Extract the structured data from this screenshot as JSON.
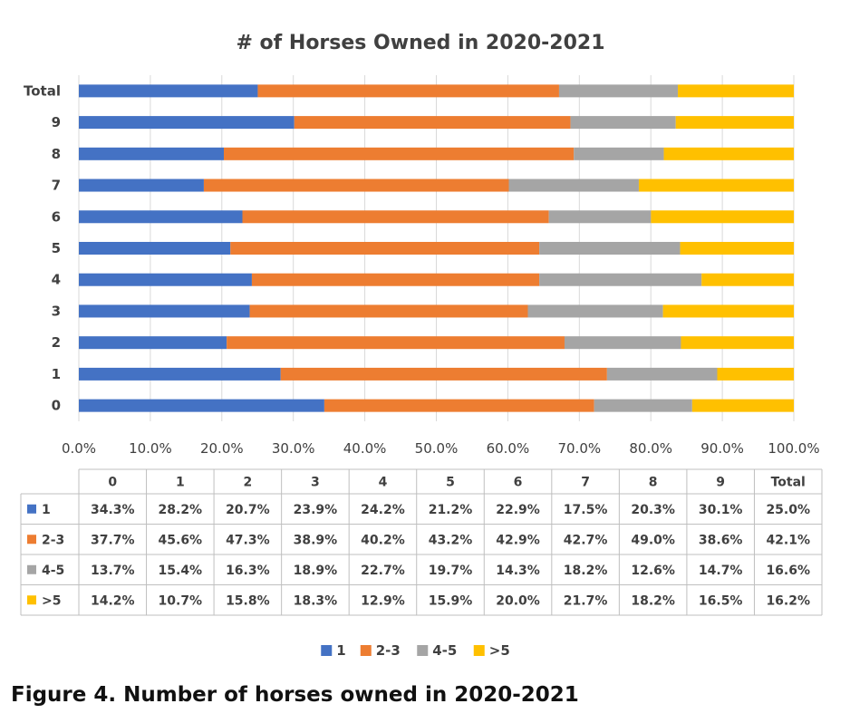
{
  "figure_caption": "Figure 4. Number of horses owned in 2020-2021",
  "chart_data": {
    "type": "bar",
    "orientation": "horizontal",
    "stacked": "100%",
    "title": "# of Horses Owned in 2020-2021",
    "categories": [
      "0",
      "1",
      "2",
      "3",
      "4",
      "5",
      "6",
      "7",
      "8",
      "9",
      "Total"
    ],
    "series": [
      {
        "name": "1",
        "color": "#4472c4",
        "values": [
          34.3,
          28.2,
          20.7,
          23.9,
          24.2,
          21.2,
          22.9,
          17.5,
          20.3,
          30.1,
          25.0
        ]
      },
      {
        "name": "2-3",
        "color": "#ed7d31",
        "values": [
          37.7,
          45.6,
          47.3,
          38.9,
          40.2,
          43.2,
          42.9,
          42.7,
          49.0,
          38.6,
          42.1
        ]
      },
      {
        "name": "4-5",
        "color": "#a5a5a5",
        "values": [
          13.7,
          15.4,
          16.3,
          18.9,
          22.7,
          19.7,
          14.3,
          18.2,
          12.6,
          14.7,
          16.6
        ]
      },
      {
        "name": ">5",
        "color": "#ffc000",
        "values": [
          14.2,
          10.7,
          15.8,
          18.3,
          12.9,
          15.9,
          20.0,
          21.7,
          18.2,
          16.5,
          16.2
        ]
      }
    ],
    "xlim": [
      0,
      100
    ],
    "x_ticks": [
      "0.0%",
      "10.0%",
      "20.0%",
      "30.0%",
      "40.0%",
      "50.0%",
      "60.0%",
      "70.0%",
      "80.0%",
      "90.0%",
      "100.0%"
    ],
    "grid": "vertical",
    "legend": "bottom",
    "data_table": {
      "columns": [
        "0",
        "1",
        "2",
        "3",
        "4",
        "5",
        "6",
        "7",
        "8",
        "9",
        "Total"
      ],
      "rows": [
        {
          "label": "1",
          "values": [
            "34.3%",
            "28.2%",
            "20.7%",
            "23.9%",
            "24.2%",
            "21.2%",
            "22.9%",
            "17.5%",
            "20.3%",
            "30.1%",
            "25.0%"
          ]
        },
        {
          "label": "2-3",
          "values": [
            "37.7%",
            "45.6%",
            "47.3%",
            "38.9%",
            "40.2%",
            "43.2%",
            "42.9%",
            "42.7%",
            "49.0%",
            "38.6%",
            "42.1%"
          ]
        },
        {
          "label": "4-5",
          "values": [
            "13.7%",
            "15.4%",
            "16.3%",
            "18.9%",
            "22.7%",
            "19.7%",
            "14.3%",
            "18.2%",
            "12.6%",
            "14.7%",
            "16.6%"
          ]
        },
        {
          "label": ">5",
          "values": [
            "14.2%",
            "10.7%",
            "15.8%",
            "18.3%",
            "12.9%",
            "15.9%",
            "20.0%",
            "21.7%",
            "18.2%",
            "16.5%",
            "16.2%"
          ]
        }
      ]
    }
  }
}
